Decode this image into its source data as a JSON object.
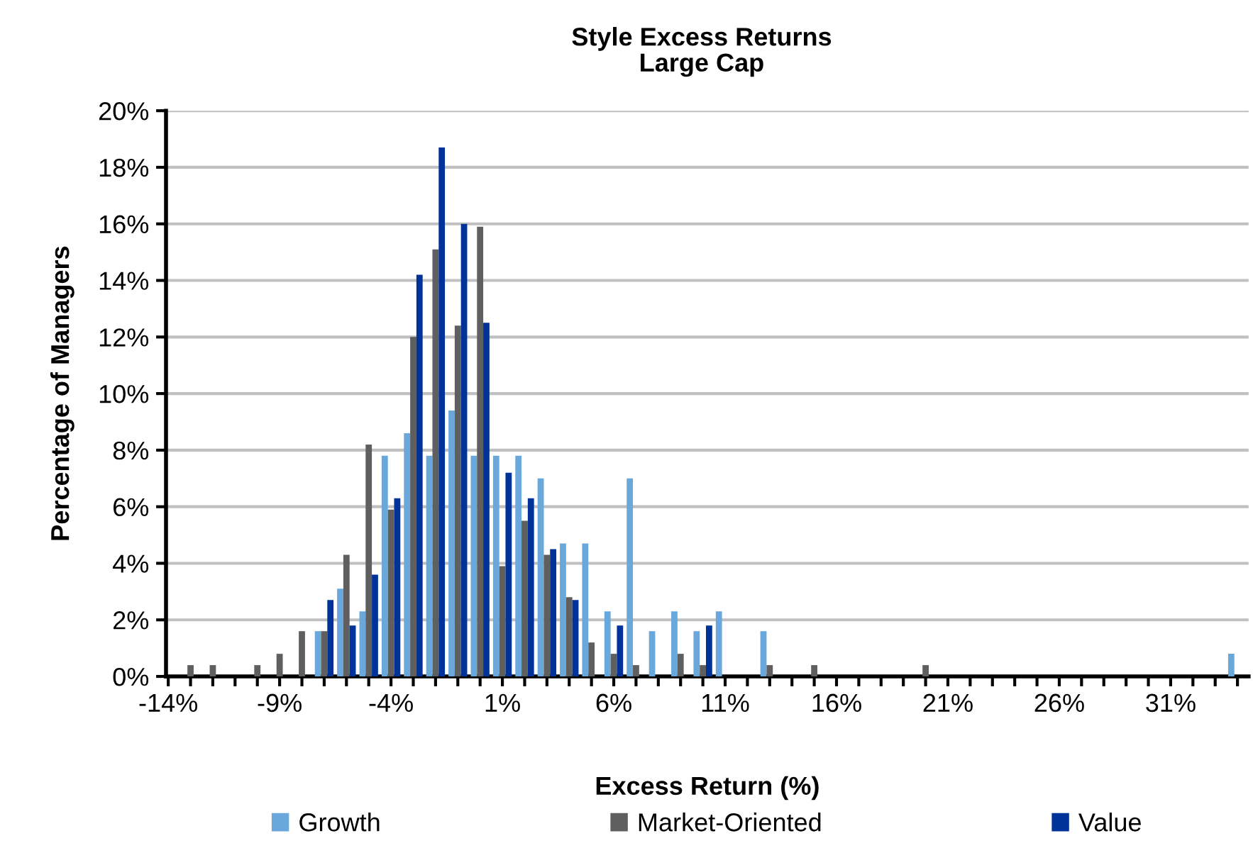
{
  "chart_data": {
    "type": "bar",
    "title": "Style Excess Returns",
    "subtitle": "Large Cap",
    "xlabel": "Excess Return (%)",
    "ylabel": "Percentage of Managers",
    "categories": [
      "-14%",
      null,
      null,
      null,
      null,
      "-9%",
      null,
      null,
      null,
      null,
      "-4%",
      null,
      null,
      null,
      null,
      "1%",
      null,
      null,
      null,
      null,
      "6%",
      null,
      null,
      null,
      null,
      "11%",
      null,
      null,
      null,
      null,
      "16%",
      null,
      null,
      null,
      null,
      "21%",
      null,
      null,
      null,
      null,
      "26%",
      null,
      null,
      null,
      null,
      "31%",
      null,
      null,
      null
    ],
    "series": [
      {
        "name": "Growth",
        "color": "#6aa8dc",
        "values": [
          null,
          null,
          null,
          null,
          null,
          null,
          null,
          1.6,
          3.1,
          2.3,
          7.8,
          8.6,
          7.8,
          9.4,
          7.8,
          7.8,
          7.8,
          7.0,
          4.7,
          4.7,
          2.3,
          7.0,
          1.6,
          2.3,
          1.6,
          2.3,
          null,
          1.6,
          null,
          null,
          null,
          null,
          null,
          null,
          null,
          null,
          null,
          null,
          null,
          null,
          null,
          null,
          null,
          null,
          null,
          null,
          null,
          null,
          0.8
        ]
      },
      {
        "name": "Market-Oriented",
        "color": "#5f5f5f",
        "values": [
          null,
          0.4,
          0.4,
          null,
          0.4,
          0.8,
          1.6,
          1.6,
          4.3,
          8.2,
          5.9,
          12.0,
          15.1,
          12.4,
          15.9,
          3.9,
          5.5,
          4.3,
          2.8,
          1.2,
          0.8,
          0.4,
          null,
          0.8,
          0.4,
          null,
          null,
          0.4,
          null,
          0.4,
          null,
          null,
          null,
          null,
          0.4,
          null,
          null,
          null,
          null,
          null,
          null,
          null,
          null,
          null,
          null,
          null,
          null,
          null,
          null
        ]
      },
      {
        "name": "Value",
        "color": "#003399",
        "values": [
          null,
          null,
          null,
          null,
          null,
          null,
          null,
          2.7,
          1.8,
          3.6,
          6.3,
          14.2,
          18.7,
          16.0,
          12.5,
          7.2,
          6.3,
          4.5,
          2.7,
          null,
          1.8,
          null,
          null,
          null,
          1.8,
          null,
          null,
          null,
          null,
          null,
          null,
          null,
          null,
          null,
          null,
          null,
          null,
          null,
          null,
          null,
          null,
          null,
          null,
          null,
          null,
          null,
          null,
          null,
          null
        ]
      }
    ],
    "ylim": [
      0,
      20
    ],
    "yticks": [
      {
        "value": 0,
        "label": "0%"
      },
      {
        "value": 2,
        "label": "2%"
      },
      {
        "value": 4,
        "label": "4%"
      },
      {
        "value": 6,
        "label": "6%"
      },
      {
        "value": 8,
        "label": "8%"
      },
      {
        "value": 10,
        "label": "10%"
      },
      {
        "value": 12,
        "label": "12%"
      },
      {
        "value": 14,
        "label": "14%"
      },
      {
        "value": 16,
        "label": "16%"
      },
      {
        "value": 18,
        "label": "18%"
      },
      {
        "value": 20,
        "label": "20%"
      }
    ],
    "grid": "y",
    "legend": "bottom"
  }
}
